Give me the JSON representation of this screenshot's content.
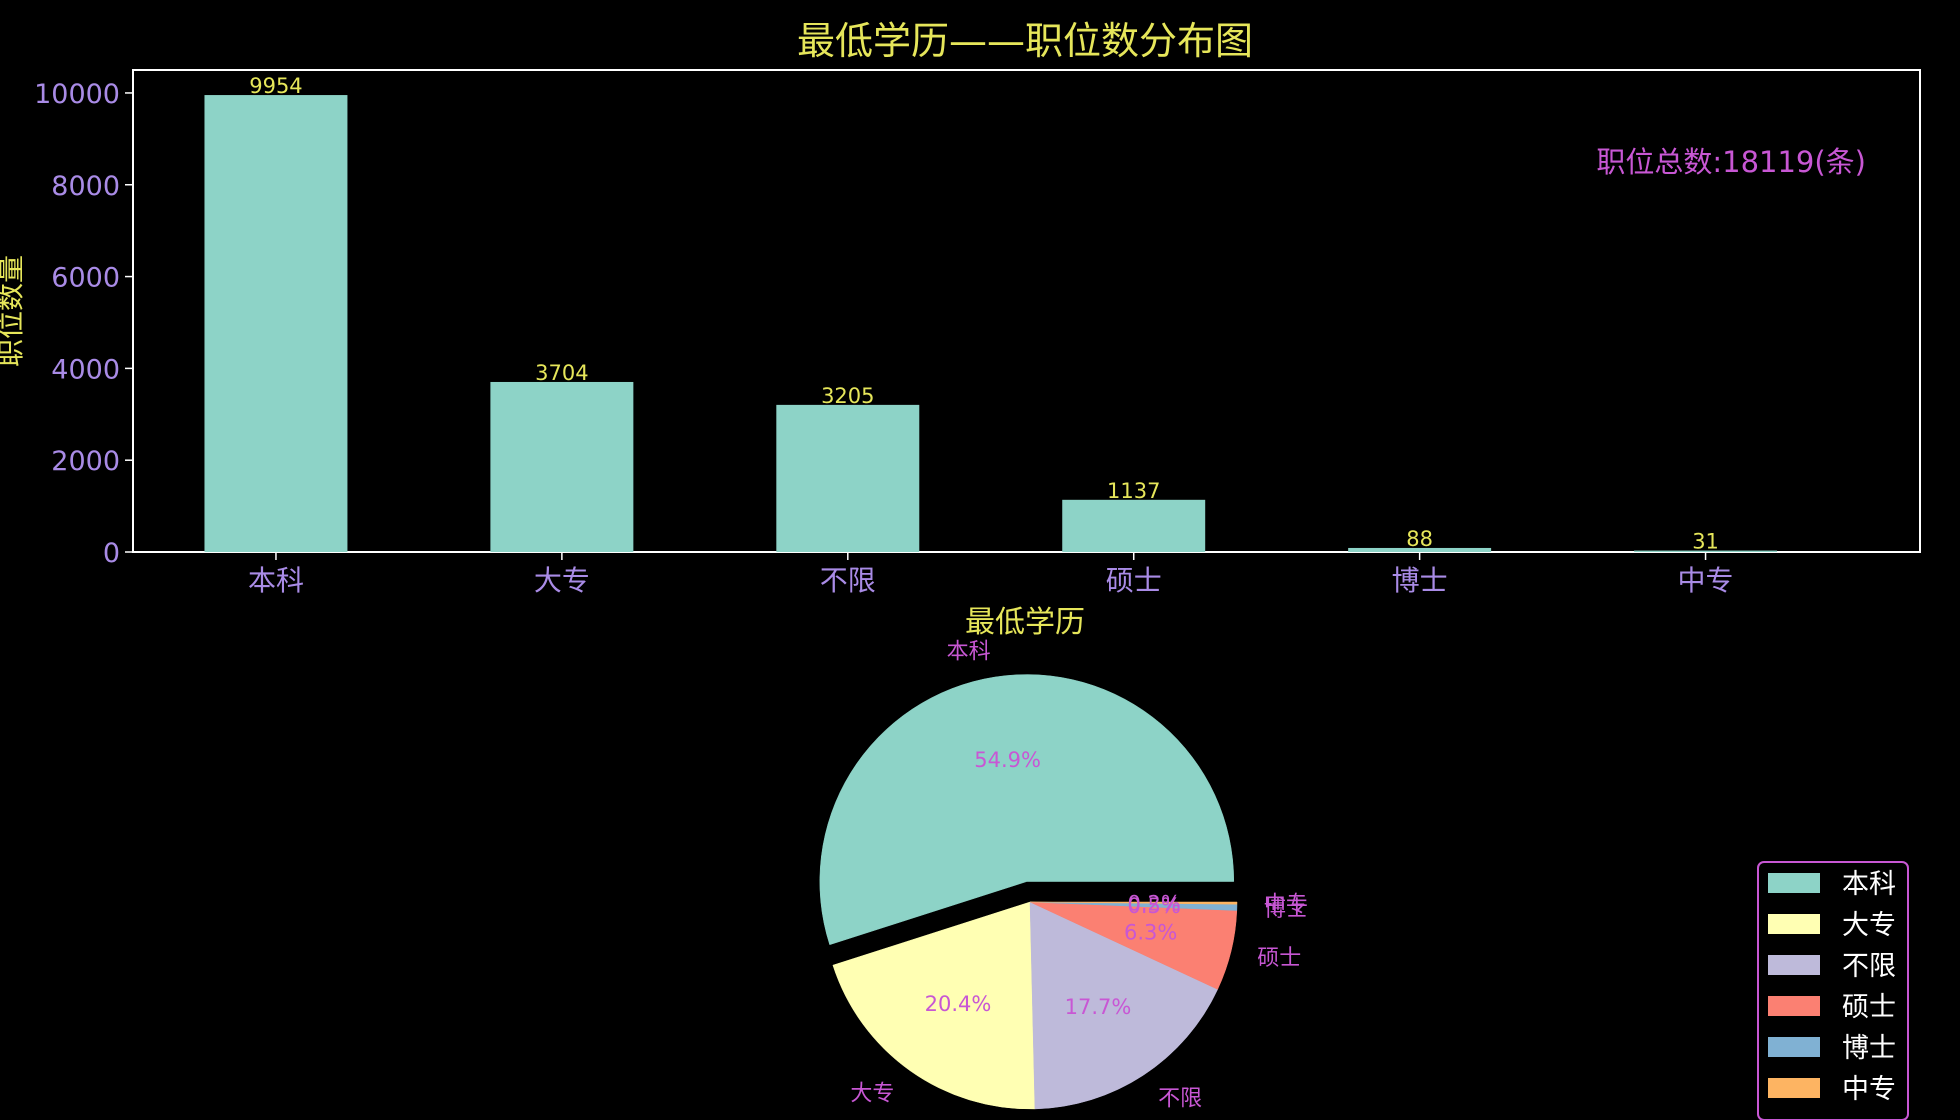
{
  "chart_data": [
    {
      "type": "bar",
      "title": "最低学历——职位数分布图",
      "xlabel": "最低学历",
      "ylabel": "职位数量",
      "categories": [
        "本科",
        "大专",
        "不限",
        "硕士",
        "博士",
        "中专"
      ],
      "values": [
        9954,
        3704,
        3205,
        1137,
        88,
        31
      ],
      "value_labels": [
        "9954",
        "3704",
        "3205",
        "1137",
        "88",
        "31"
      ],
      "ylim": [
        0,
        10500
      ],
      "yticks": [
        0,
        2000,
        4000,
        6000,
        8000,
        10000
      ],
      "ytick_labels": [
        "0",
        "2000",
        "4000",
        "6000",
        "8000",
        "10000"
      ],
      "annotation": "职位总数:18119(条)",
      "grid": false,
      "colors": {
        "bar": "#8dd3c7",
        "title": "#e6e65a",
        "tick": "#a98be6",
        "annotation": "#c857d4",
        "axes": "#ffffff"
      }
    },
    {
      "type": "pie",
      "categories": [
        "本科",
        "大专",
        "不限",
        "硕士",
        "博士",
        "中专"
      ],
      "values": [
        9954,
        3704,
        3205,
        1137,
        88,
        31
      ],
      "percent_labels": [
        "54.9%",
        "20.4%",
        "17.7%",
        "6.3%",
        "0.5%",
        "0.2%"
      ],
      "explode": [
        0.1,
        0,
        0,
        0,
        0,
        0
      ],
      "colors": [
        "#8dd3c7",
        "#ffffb3",
        "#bebada",
        "#fb8072",
        "#80b1d3",
        "#fdb462"
      ],
      "label_color": "#c857d4",
      "legend": {
        "position": "lower-right",
        "entries": [
          "本科",
          "大专",
          "不限",
          "硕士",
          "博士",
          "中专"
        ],
        "border_color": "#c857d4"
      }
    }
  ]
}
